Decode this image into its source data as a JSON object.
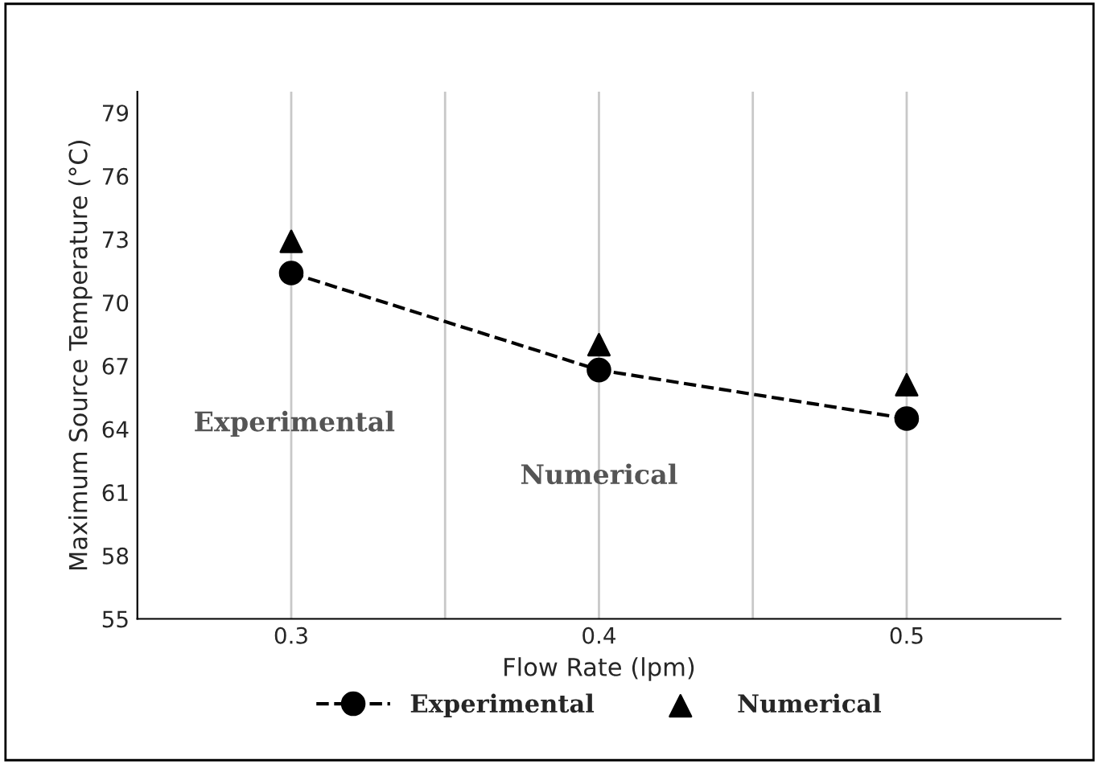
{
  "chart_data": {
    "type": "line",
    "xlabel": "Flow Rate (lpm)",
    "ylabel": "Maximum Source Temperature (°C)",
    "x": [
      0.3,
      0.4,
      0.5
    ],
    "series": [
      {
        "name": "Experimental",
        "color": "#000000",
        "values": [
          71.4,
          66.8,
          64.5
        ],
        "marker": "circle",
        "line_style": "dashed"
      },
      {
        "name": "Numerical",
        "type": "scatter",
        "color": "#000000",
        "values": [
          72.9,
          68.0,
          66.1
        ],
        "marker": "triangle"
      }
    ],
    "xlim": [
      0.25,
      0.55
    ],
    "xticks": [
      0.3,
      {
        "value": 0.35,
        "label": null
      },
      0.4,
      {
        "value": 0.45,
        "label": null
      },
      0.5
    ],
    "ylim": [
      55,
      80
    ],
    "yticks": [
      55,
      58,
      61,
      64,
      67,
      70,
      73,
      76,
      79
    ],
    "grid": "x",
    "legend": "bottom",
    "annotations": [
      "Experimental",
      "Numerical"
    ]
  }
}
